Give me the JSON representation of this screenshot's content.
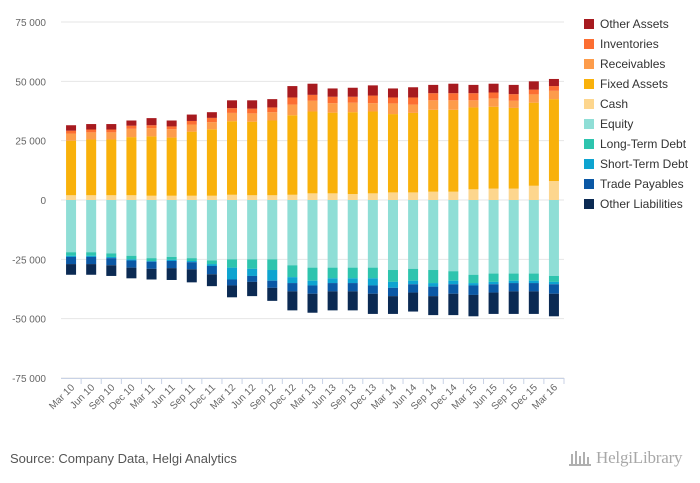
{
  "chart_data": {
    "type": "bar",
    "stacked": true,
    "categories": [
      "Mar 10",
      "Jun 10",
      "Sep 10",
      "Dec 10",
      "Mar 11",
      "Jun 11",
      "Sep 11",
      "Dec 11",
      "Mar 12",
      "Jun 12",
      "Sep 12",
      "Dec 12",
      "Mar 13",
      "Jun 13",
      "Sep 13",
      "Dec 13",
      "Mar 14",
      "Jun 14",
      "Sep 14",
      "Dec 14",
      "Mar 15",
      "Jun 15",
      "Sep 15",
      "Dec 15",
      "Mar 16"
    ],
    "ylim": [
      -75000,
      75000
    ],
    "yticks": [
      75000,
      50000,
      25000,
      0,
      -25000,
      -50000,
      -75000
    ],
    "ytick_labels": [
      "75 000",
      "50 000",
      "25 000",
      "0",
      "-25 000",
      "-50 000",
      "-75 000"
    ],
    "legend_position": "right",
    "grid": true,
    "assets": [
      {
        "name": "Cash",
        "color": "#fdd68e",
        "values": [
          2000,
          2000,
          2000,
          2000,
          1800,
          1800,
          1800,
          1800,
          2200,
          2000,
          2000,
          2200,
          2800,
          2800,
          2500,
          2800,
          3200,
          3200,
          3500,
          3500,
          4500,
          4800,
          4800,
          6000,
          8000
        ]
      },
      {
        "name": "Fixed Assets",
        "color": "#f9b10b",
        "values": [
          23000,
          23500,
          23500,
          24500,
          25000,
          24500,
          27000,
          28000,
          31000,
          31000,
          31500,
          33500,
          34500,
          34000,
          34500,
          34500,
          33000,
          33500,
          34500,
          34500,
          34500,
          34500,
          34000,
          35000,
          34500
        ]
      },
      {
        "name": "Receivables",
        "color": "#fd9c4b",
        "values": [
          3000,
          3000,
          3000,
          3500,
          3500,
          3500,
          3000,
          3000,
          3500,
          3500,
          3500,
          4500,
          4500,
          4000,
          4000,
          3500,
          4500,
          3500,
          4000,
          4000,
          3000,
          3500,
          3000,
          3500,
          3500
        ]
      },
      {
        "name": "Inventories",
        "color": "#fc6e32",
        "values": [
          1200,
          1200,
          1200,
          1300,
          1200,
          1200,
          1500,
          1800,
          2000,
          2000,
          2000,
          3000,
          2500,
          2700,
          2500,
          3200,
          2500,
          3000,
          3000,
          3000,
          3000,
          2500,
          2800,
          2000,
          2000
        ]
      },
      {
        "name": "Other Assets",
        "color": "#a71a1f",
        "values": [
          2300,
          2300,
          2300,
          2200,
          3000,
          2500,
          2700,
          2400,
          3300,
          3500,
          3500,
          4800,
          4700,
          3500,
          3800,
          4300,
          3800,
          4300,
          3500,
          4000,
          3500,
          3700,
          3900,
          3500,
          3000
        ]
      }
    ],
    "liabilities": [
      {
        "name": "Equity",
        "color": "#8fded6",
        "values": [
          22000,
          22000,
          22500,
          23500,
          24500,
          24000,
          24500,
          25500,
          25000,
          25000,
          25000,
          27500,
          28500,
          28500,
          28500,
          28500,
          29500,
          29000,
          29500,
          30000,
          31500,
          31000,
          31000,
          31000,
          32000
        ]
      },
      {
        "name": "Long-Term Debt",
        "color": "#2ec4ae",
        "values": [
          1500,
          1500,
          1500,
          1500,
          1200,
          1200,
          1200,
          1500,
          3500,
          4000,
          4500,
          5000,
          5500,
          4500,
          4500,
          4500,
          5000,
          5000,
          5500,
          4000,
          3500,
          3500,
          3000,
          3000,
          2500
        ]
      },
      {
        "name": "Short-Term Debt",
        "color": "#0ea4d0",
        "values": [
          500,
          500,
          500,
          500,
          300,
          500,
          500,
          800,
          5000,
          3000,
          4500,
          2500,
          2000,
          2000,
          2000,
          3000,
          2500,
          1500,
          1500,
          1500,
          1000,
          1000,
          1000,
          1000,
          1000
        ]
      },
      {
        "name": "Trade Payables",
        "color": "#0b58a5",
        "values": [
          3000,
          3000,
          3000,
          3000,
          3000,
          3000,
          3000,
          3500,
          2500,
          2500,
          3000,
          3500,
          3500,
          3500,
          3500,
          3500,
          3500,
          3500,
          4000,
          4000,
          4000,
          3500,
          3500,
          3500,
          4000
        ]
      },
      {
        "name": "Other Liabilities",
        "color": "#0b2a53",
        "values": [
          4500,
          4500,
          4500,
          4500,
          4500,
          5000,
          5500,
          5000,
          5000,
          6000,
          5500,
          8000,
          8000,
          8000,
          8000,
          8500,
          7500,
          8000,
          8000,
          9000,
          9000,
          9000,
          9500,
          9500,
          9500
        ]
      }
    ],
    "legend": [
      {
        "name": "Other Assets",
        "color": "#a71a1f"
      },
      {
        "name": "Inventories",
        "color": "#fc6e32"
      },
      {
        "name": "Receivables",
        "color": "#fd9c4b"
      },
      {
        "name": "Fixed Assets",
        "color": "#f9b10b"
      },
      {
        "name": "Cash",
        "color": "#fdd68e"
      },
      {
        "name": "Equity",
        "color": "#8fded6"
      },
      {
        "name": "Long-Term Debt",
        "color": "#2ec4ae"
      },
      {
        "name": "Short-Term Debt",
        "color": "#0ea4d0"
      },
      {
        "name": "Trade Payables",
        "color": "#0b58a5"
      },
      {
        "name": "Other Liabilities",
        "color": "#0b2a53"
      }
    ]
  },
  "footer": {
    "source": "Source: Company Data, Helgi Analytics",
    "brand": "HelgiLibrary"
  }
}
